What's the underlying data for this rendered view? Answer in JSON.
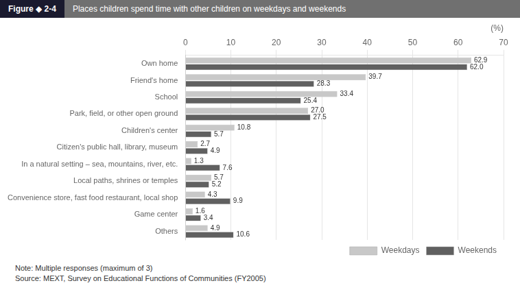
{
  "chart_data": {
    "type": "bar",
    "orientation": "horizontal",
    "title": "Places children spend time with other children on weekdays and weekends",
    "subtitle": "Figure ◆ 2-4",
    "xlabel": "(%)",
    "annotations": [
      "Note: Multiple responses (maximum of 3)",
      "Source: MEXT, Survey on Educational Functions of Communities (FY2005)"
    ],
    "categories": [
      "Own home",
      "Friend's home",
      "School",
      "Park, field, or other open ground",
      "Children's center",
      "Citizen's public hall, library, museum",
      "In a natural setting – sea, mountains, river, etc.",
      "Local paths, shrines or temples",
      "Convenience store, fast food restaurant, local shop",
      "Game center",
      "Others"
    ],
    "series": [
      {
        "name": "Weekdays",
        "color": "#c8c8c8",
        "values": [
          62.9,
          39.7,
          33.4,
          27.0,
          10.8,
          2.7,
          1.3,
          5.7,
          4.3,
          1.6,
          4.9
        ],
        "value_labels": [
          "62.9",
          "39.7",
          "33.4",
          "27.0",
          "10.8",
          "2.7",
          "1.3",
          "5.7",
          "4.3",
          "1.6",
          "4.9"
        ]
      },
      {
        "name": "Weekends",
        "color": "#606060",
        "values": [
          62.0,
          28.3,
          25.4,
          27.5,
          5.7,
          4.9,
          7.6,
          5.2,
          9.9,
          3.4,
          10.6
        ],
        "value_labels": [
          "62.0",
          "28.3",
          "25.4",
          "27.5",
          "5.7",
          "4.9",
          "7.6",
          "5.2",
          "9.9",
          "3.4",
          "10.6"
        ]
      }
    ],
    "xlim": [
      0,
      70
    ],
    "xticks": [
      0,
      10,
      20,
      30,
      40,
      50,
      60,
      70
    ],
    "grid": true,
    "legend": "lower right",
    "data_labels": true
  }
}
